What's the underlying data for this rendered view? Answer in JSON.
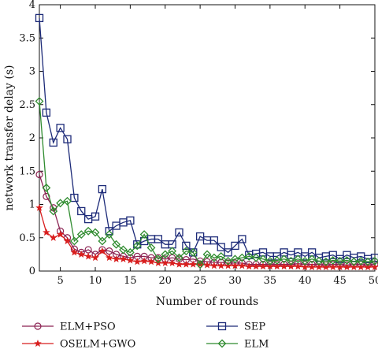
{
  "chart_data": {
    "type": "line",
    "xlabel": "Number of rounds",
    "ylabel": "network transfer delay (s)",
    "xlim": [
      2,
      50
    ],
    "ylim": [
      0,
      4
    ],
    "xticks": [
      5,
      10,
      15,
      20,
      25,
      30,
      35,
      40,
      45,
      50
    ],
    "yticks": [
      0,
      0.5,
      1,
      1.5,
      2,
      2.5,
      3,
      3.5,
      4
    ],
    "grid": false,
    "legend_position": "bottom",
    "x": [
      2,
      3,
      4,
      5,
      6,
      7,
      8,
      9,
      10,
      11,
      12,
      13,
      14,
      15,
      16,
      17,
      18,
      19,
      20,
      21,
      22,
      23,
      24,
      25,
      26,
      27,
      28,
      29,
      30,
      31,
      32,
      33,
      34,
      35,
      36,
      37,
      38,
      39,
      40,
      41,
      42,
      43,
      44,
      45,
      46,
      47,
      48,
      49,
      50
    ],
    "series": [
      {
        "name": "ELM+PSO",
        "color": "#8b2252",
        "marker": "circle",
        "values": [
          1.45,
          1.12,
          0.95,
          0.6,
          0.5,
          0.33,
          0.28,
          0.32,
          0.25,
          0.32,
          0.3,
          0.25,
          0.22,
          0.2,
          0.22,
          0.22,
          0.2,
          0.2,
          0.18,
          0.2,
          0.18,
          0.17,
          0.18,
          0.15,
          0.14,
          0.13,
          0.13,
          0.12,
          0.12,
          0.12,
          0.1,
          0.1,
          0.1,
          0.1,
          0.1,
          0.1,
          0.1,
          0.11,
          0.1,
          0.1,
          0.1,
          0.09,
          0.1,
          0.1,
          0.09,
          0.1,
          0.1,
          0.09,
          0.1
        ]
      },
      {
        "name": "SEP",
        "color": "#1c2a78",
        "marker": "square",
        "values": [
          3.8,
          2.38,
          1.93,
          2.15,
          1.98,
          1.1,
          0.9,
          0.78,
          0.82,
          1.23,
          0.6,
          0.68,
          0.73,
          0.76,
          0.4,
          0.45,
          0.48,
          0.48,
          0.4,
          0.4,
          0.58,
          0.38,
          0.28,
          0.52,
          0.46,
          0.46,
          0.36,
          0.28,
          0.38,
          0.48,
          0.24,
          0.26,
          0.28,
          0.22,
          0.22,
          0.28,
          0.24,
          0.28,
          0.22,
          0.28,
          0.2,
          0.22,
          0.24,
          0.18,
          0.24,
          0.2,
          0.22,
          0.18,
          0.2
        ]
      },
      {
        "name": "OSELM+GWO",
        "color": "#d81e1e",
        "marker": "star",
        "values": [
          0.95,
          0.58,
          0.5,
          0.55,
          0.45,
          0.28,
          0.25,
          0.22,
          0.2,
          0.3,
          0.2,
          0.18,
          0.18,
          0.16,
          0.14,
          0.15,
          0.14,
          0.12,
          0.12,
          0.12,
          0.1,
          0.1,
          0.1,
          0.1,
          0.09,
          0.08,
          0.08,
          0.08,
          0.08,
          0.08,
          0.07,
          0.07,
          0.07,
          0.07,
          0.07,
          0.07,
          0.07,
          0.07,
          0.06,
          0.06,
          0.06,
          0.06,
          0.06,
          0.06,
          0.06,
          0.06,
          0.06,
          0.06,
          0.06
        ]
      },
      {
        "name": "ELM",
        "color": "#2e8b2e",
        "marker": "diamond",
        "values": [
          2.55,
          1.25,
          0.9,
          1.02,
          1.05,
          0.45,
          0.55,
          0.6,
          0.58,
          0.45,
          0.55,
          0.4,
          0.32,
          0.28,
          0.38,
          0.55,
          0.35,
          0.18,
          0.25,
          0.3,
          0.2,
          0.3,
          0.28,
          0.1,
          0.25,
          0.2,
          0.22,
          0.15,
          0.18,
          0.2,
          0.22,
          0.2,
          0.18,
          0.15,
          0.16,
          0.18,
          0.15,
          0.18,
          0.15,
          0.18,
          0.15,
          0.14,
          0.16,
          0.15,
          0.16,
          0.14,
          0.15,
          0.14,
          0.15
        ]
      }
    ]
  }
}
